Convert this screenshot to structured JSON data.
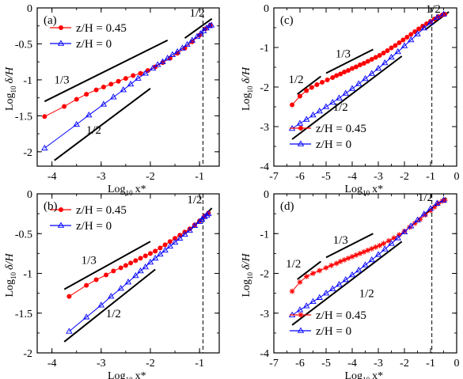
{
  "colors": {
    "series_red": "#ff0000",
    "series_blue": "#0000ff",
    "guide": "#000000"
  },
  "chart_data": [
    {
      "panel": "(a)",
      "type": "line",
      "xlabel": "Log",
      "xlabel_sub": "10",
      "xlabel_var": "x*",
      "ylabel": "Log",
      "ylabel_sub": "10",
      "ylabel_var": "δ/H",
      "xlim": [
        -4.3,
        -0.6
      ],
      "ylim": [
        -2.2,
        0
      ],
      "xticks": [
        -4,
        -3,
        -2,
        -1
      ],
      "xtick_labels": [
        "-4",
        "-3",
        "-2",
        "-1"
      ],
      "yticks": [
        -2,
        -1.5,
        -1,
        -0.5,
        0
      ],
      "ytick_labels": [
        "-2",
        "-1.5",
        "-1",
        "-0.5",
        "0"
      ],
      "xminor_step": 0.5,
      "yminor_step": 0.25,
      "vline_x": -0.93,
      "legend_position": "top-left",
      "series": [
        {
          "name": "z/H = 0.45",
          "color": "#ff0000",
          "marker": "circle",
          "x": [
            -4.15,
            -3.75,
            -3.5,
            -3.3,
            -3.1,
            -2.95,
            -2.8,
            -2.65,
            -2.5,
            -2.35,
            -2.2,
            -2.05,
            -1.9,
            -1.75,
            -1.6,
            -1.45,
            -1.3,
            -1.15,
            -1.0,
            -0.88,
            -0.78
          ],
          "y": [
            -1.51,
            -1.37,
            -1.27,
            -1.2,
            -1.14,
            -1.1,
            -1.06,
            -1.02,
            -0.98,
            -0.94,
            -0.91,
            -0.87,
            -0.82,
            -0.76,
            -0.7,
            -0.63,
            -0.56,
            -0.47,
            -0.38,
            -0.29,
            -0.24
          ]
        },
        {
          "name": "z/H = 0",
          "color": "#0000ff",
          "marker": "triangle",
          "x": [
            -4.15,
            -3.5,
            -3.25,
            -2.95,
            -2.75,
            -2.55,
            -2.4,
            -2.25,
            -2.1,
            -1.95,
            -1.85,
            -1.75,
            -1.65,
            -1.55,
            -1.45,
            -1.35,
            -1.25,
            -1.15,
            -1.05,
            -0.98,
            -0.92,
            -0.86,
            -0.8,
            -0.76
          ],
          "y": [
            -1.95,
            -1.62,
            -1.49,
            -1.34,
            -1.24,
            -1.14,
            -1.06,
            -0.98,
            -0.91,
            -0.84,
            -0.79,
            -0.75,
            -0.7,
            -0.65,
            -0.61,
            -0.56,
            -0.51,
            -0.45,
            -0.4,
            -0.36,
            -0.32,
            -0.28,
            -0.25,
            -0.24
          ]
        }
      ],
      "guides": [
        {
          "x": [
            -4.15,
            -1.65
          ],
          "y": [
            -1.3,
            -0.45
          ],
          "label": "1/3",
          "label_x": -3.8,
          "label_y": -1.05
        },
        {
          "x": [
            -3.95,
            -2.0
          ],
          "y": [
            -2.12,
            -1.12
          ],
          "label": "1/2",
          "label_x": -3.15,
          "label_y": -1.75
        },
        {
          "x": [
            -1.3,
            -0.75
          ],
          "y": [
            -0.42,
            -0.15
          ],
          "label": "1/2",
          "label_x": -1.05,
          "label_y": -0.12
        }
      ]
    },
    {
      "panel": "(b)",
      "type": "line",
      "xlabel": "Log",
      "xlabel_sub": "10",
      "xlabel_var": "x*",
      "ylabel": "Log",
      "ylabel_sub": "10",
      "ylabel_var": "δ/H",
      "xlim": [
        -4.3,
        -0.6
      ],
      "ylim": [
        -2,
        0
      ],
      "xticks": [
        -4,
        -3,
        -2,
        -1
      ],
      "xtick_labels": [
        "-4",
        "-3",
        "-2",
        "-1"
      ],
      "yticks": [
        -2,
        -1.5,
        -1,
        -0.5,
        0
      ],
      "ytick_labels": [
        "-2",
        "-1.5",
        "-1",
        "-0.5",
        "0"
      ],
      "xminor_step": 0.5,
      "yminor_step": 0.25,
      "vline_x": -0.93,
      "legend_position": "top-left",
      "series": [
        {
          "name": "z/H = 0.45",
          "color": "#ff0000",
          "marker": "circle",
          "x": [
            -3.65,
            -3.3,
            -3.1,
            -2.9,
            -2.75,
            -2.6,
            -2.5,
            -2.4,
            -2.3,
            -2.2,
            -2.1,
            -2.0,
            -1.9,
            -1.8,
            -1.7,
            -1.6,
            -1.5,
            -1.4,
            -1.3,
            -1.2,
            -1.1,
            -1.0,
            -0.9,
            -0.82
          ],
          "y": [
            -1.29,
            -1.15,
            -1.08,
            -1.02,
            -0.97,
            -0.93,
            -0.9,
            -0.87,
            -0.84,
            -0.81,
            -0.78,
            -0.75,
            -0.72,
            -0.68,
            -0.64,
            -0.6,
            -0.56,
            -0.52,
            -0.48,
            -0.44,
            -0.39,
            -0.34,
            -0.28,
            -0.24
          ]
        },
        {
          "name": "z/H = 0",
          "color": "#0000ff",
          "marker": "triangle",
          "x": [
            -3.65,
            -3.3,
            -3.0,
            -2.8,
            -2.6,
            -2.45,
            -2.3,
            -2.2,
            -2.1,
            -2.0,
            -1.9,
            -1.8,
            -1.7,
            -1.6,
            -1.5,
            -1.4,
            -1.3,
            -1.2,
            -1.1,
            -1.0,
            -0.95,
            -0.9,
            -0.85,
            -0.82
          ],
          "y": [
            -1.73,
            -1.55,
            -1.4,
            -1.29,
            -1.19,
            -1.11,
            -1.03,
            -0.97,
            -0.92,
            -0.86,
            -0.81,
            -0.76,
            -0.71,
            -0.66,
            -0.61,
            -0.56,
            -0.51,
            -0.46,
            -0.4,
            -0.35,
            -0.32,
            -0.29,
            -0.27,
            -0.25
          ]
        }
      ],
      "guides": [
        {
          "x": [
            -3.75,
            -2.0
          ],
          "y": [
            -1.2,
            -0.6
          ],
          "label": "1/3",
          "label_x": -3.25,
          "label_y": -0.88
        },
        {
          "x": [
            -3.75,
            -1.9
          ],
          "y": [
            -1.86,
            -0.95
          ],
          "label": "1/2",
          "label_x": -2.75,
          "label_y": -1.55
        },
        {
          "x": [
            -1.2,
            -0.75
          ],
          "y": [
            -0.46,
            -0.18
          ],
          "label": "1/2",
          "label_x": -1.1,
          "label_y": -0.12
        }
      ]
    },
    {
      "panel": "(c)",
      "type": "line",
      "xlabel": "Log",
      "xlabel_sub": "10",
      "xlabel_var": "x*",
      "ylabel": "Log",
      "ylabel_sub": "10",
      "ylabel_var": "δ/H",
      "xlim": [
        -7,
        0
      ],
      "ylim": [
        -4,
        0
      ],
      "xticks": [
        -7,
        -6,
        -5,
        -4,
        -3,
        -2,
        -1,
        0
      ],
      "xtick_labels": [
        "-7",
        "-6",
        "-5",
        "-4",
        "-3",
        "-2",
        "-1",
        "0"
      ],
      "yticks": [
        -4,
        -3,
        -2,
        -1,
        0
      ],
      "ytick_labels": [
        "-4",
        "-3",
        "-2",
        "-1",
        "0"
      ],
      "xminor_step": 0.5,
      "yminor_step": 0.5,
      "vline_x": -0.95,
      "legend_position": "bottom-center",
      "series": [
        {
          "name": "z/H = 0.45",
          "color": "#ff0000",
          "marker": "circle",
          "x": [
            -6.3,
            -6.0,
            -5.75,
            -5.55,
            -5.35,
            -5.15,
            -4.95,
            -4.75,
            -4.6,
            -4.45,
            -4.3,
            -4.15,
            -4.0,
            -3.85,
            -3.7,
            -3.55,
            -3.4,
            -3.25,
            -3.1,
            -2.95,
            -2.8,
            -2.65,
            -2.5,
            -2.35,
            -2.2,
            -2.05,
            -1.9,
            -1.75,
            -1.6,
            -1.45,
            -1.3,
            -1.15,
            -1.0,
            -0.85,
            -0.7,
            -0.55,
            -0.45
          ],
          "y": [
            -2.45,
            -2.23,
            -2.09,
            -2.01,
            -1.94,
            -1.88,
            -1.82,
            -1.76,
            -1.71,
            -1.67,
            -1.62,
            -1.58,
            -1.53,
            -1.49,
            -1.44,
            -1.4,
            -1.35,
            -1.3,
            -1.25,
            -1.2,
            -1.14,
            -1.08,
            -1.01,
            -0.95,
            -0.88,
            -0.81,
            -0.74,
            -0.67,
            -0.6,
            -0.53,
            -0.46,
            -0.4,
            -0.34,
            -0.28,
            -0.22,
            -0.18,
            -0.16
          ]
        },
        {
          "name": "z/H = 0",
          "color": "#0000ff",
          "marker": "triangle",
          "x": [
            -6.3,
            -6.0,
            -5.75,
            -5.5,
            -5.25,
            -5.0,
            -4.75,
            -4.5,
            -4.25,
            -4.0,
            -3.75,
            -3.5,
            -3.25,
            -3.0,
            -2.75,
            -2.5,
            -2.25,
            -2.0,
            -1.75,
            -1.5,
            -1.25,
            -1.0,
            -0.75,
            -0.5
          ],
          "y": [
            -3.05,
            -2.92,
            -2.82,
            -2.71,
            -2.61,
            -2.5,
            -2.39,
            -2.28,
            -2.16,
            -2.04,
            -1.92,
            -1.79,
            -1.66,
            -1.53,
            -1.39,
            -1.25,
            -1.11,
            -0.96,
            -0.81,
            -0.66,
            -0.51,
            -0.37,
            -0.24,
            -0.16
          ]
        }
      ],
      "guides": [
        {
          "x": [
            -6.1,
            -5.2
          ],
          "y": [
            -2.18,
            -1.73
          ],
          "label": "1/2",
          "label_x": -6.15,
          "label_y": -1.9
        },
        {
          "x": [
            -5.0,
            -3.2
          ],
          "y": [
            -1.65,
            -1.05
          ],
          "label": "1/3",
          "label_x": -4.35,
          "label_y": -1.25
        },
        {
          "x": [
            -6.3,
            -2.1
          ],
          "y": [
            -3.32,
            -1.22
          ],
          "label": "1/2",
          "label_x": -4.45,
          "label_y": -2.6
        },
        {
          "x": [
            -1.2,
            -0.3
          ],
          "y": [
            -0.55,
            -0.1
          ],
          "label": "1/2",
          "label_x": -0.9,
          "label_y": -0.12
        }
      ]
    },
    {
      "panel": "(d)",
      "type": "line",
      "xlabel": "Log",
      "xlabel_sub": "10",
      "xlabel_var": "x*",
      "ylabel": "Log",
      "ylabel_sub": "10",
      "ylabel_var": "δ/H",
      "xlim": [
        -7,
        0
      ],
      "ylim": [
        -4,
        0
      ],
      "xticks": [
        -7,
        -6,
        -5,
        -4,
        -3,
        -2,
        -1,
        0
      ],
      "xtick_labels": [
        "-7",
        "-6",
        "-5",
        "-4",
        "-3",
        "-2",
        "-1",
        "0"
      ],
      "yticks": [
        -4,
        -3,
        -2,
        -1,
        0
      ],
      "ytick_labels": [
        "-4",
        "-3",
        "-2",
        "-1",
        "0"
      ],
      "xminor_step": 0.5,
      "yminor_step": 0.5,
      "vline_x": -0.95,
      "legend_position": "bottom-center",
      "series": [
        {
          "name": "z/H = 0.45",
          "color": "#ff0000",
          "marker": "star",
          "x": [
            -6.3,
            -6.0,
            -5.75,
            -5.5,
            -5.25,
            -5.0,
            -4.8,
            -4.6,
            -4.45,
            -4.3,
            -4.15,
            -4.0,
            -3.85,
            -3.7,
            -3.55,
            -3.4,
            -3.25,
            -3.1,
            -2.95,
            -2.8,
            -2.6,
            -2.4,
            -2.2,
            -2.0,
            -1.8,
            -1.6,
            -1.4,
            -1.2,
            -1.0,
            -0.85,
            -0.7,
            -0.55,
            -0.45
          ],
          "y": [
            -2.45,
            -2.22,
            -2.08,
            -2.0,
            -1.93,
            -1.86,
            -1.8,
            -1.75,
            -1.7,
            -1.66,
            -1.62,
            -1.58,
            -1.54,
            -1.5,
            -1.46,
            -1.42,
            -1.38,
            -1.34,
            -1.3,
            -1.25,
            -1.18,
            -1.11,
            -1.03,
            -0.94,
            -0.84,
            -0.74,
            -0.64,
            -0.53,
            -0.42,
            -0.33,
            -0.24,
            -0.18,
            -0.16
          ]
        },
        {
          "name": "z/H = 0",
          "color": "#0000ff",
          "marker": "triangle",
          "x": [
            -6.3,
            -6.0,
            -5.75,
            -5.5,
            -5.25,
            -5.0,
            -4.75,
            -4.5,
            -4.25,
            -4.0,
            -3.75,
            -3.5,
            -3.25,
            -3.0,
            -2.75,
            -2.5,
            -2.25,
            -2.0,
            -1.75,
            -1.5,
            -1.25,
            -1.0,
            -0.75,
            -0.5
          ],
          "y": [
            -3.05,
            -2.92,
            -2.82,
            -2.71,
            -2.61,
            -2.5,
            -2.39,
            -2.28,
            -2.16,
            -2.04,
            -1.92,
            -1.79,
            -1.66,
            -1.53,
            -1.39,
            -1.25,
            -1.11,
            -0.96,
            -0.81,
            -0.66,
            -0.51,
            -0.37,
            -0.24,
            -0.16
          ]
        }
      ],
      "guides": [
        {
          "x": [
            -6.1,
            -5.2
          ],
          "y": [
            -2.15,
            -1.7
          ],
          "label": "1/2",
          "label_x": -6.25,
          "label_y": -1.85
        },
        {
          "x": [
            -5.0,
            -3.2
          ],
          "y": [
            -1.6,
            -1.0
          ],
          "label": "1/3",
          "label_x": -4.45,
          "label_y": -1.25
        },
        {
          "x": [
            -6.3,
            -2.1
          ],
          "y": [
            -3.3,
            -1.2
          ],
          "label": "1/2",
          "label_x": -3.45,
          "label_y": -2.6
        },
        {
          "x": [
            -1.2,
            -0.4
          ],
          "y": [
            -0.5,
            -0.1
          ],
          "label": "1/2",
          "label_x": -1.2,
          "label_y": -0.18
        }
      ]
    }
  ]
}
